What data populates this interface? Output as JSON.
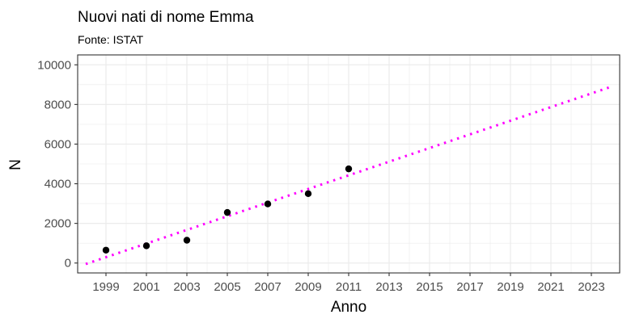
{
  "chart_data": {
    "type": "scatter",
    "title": "Nuovi nati di nome Emma",
    "subtitle": "Fonte: ISTAT",
    "xlabel": "Anno",
    "ylabel": "N",
    "xlim": [
      1997.6,
      2024.4
    ],
    "ylim": [
      -500,
      10500
    ],
    "x_ticks": [
      1999,
      2001,
      2003,
      2005,
      2007,
      2009,
      2011,
      2013,
      2015,
      2017,
      2019,
      2021,
      2023
    ],
    "y_ticks": [
      0,
      2000,
      4000,
      6000,
      8000,
      10000
    ],
    "grid": true,
    "points": {
      "x": [
        1999,
        2001,
        2003,
        2005,
        2007,
        2009,
        2011
      ],
      "y": [
        650,
        870,
        1150,
        2550,
        2980,
        3500,
        4750
      ]
    },
    "trend_line": {
      "x": [
        1998,
        2024
      ],
      "y": [
        -50,
        8900
      ],
      "color": "#ff00ff",
      "style": "dotted"
    },
    "point_color": "#000000",
    "panel_background": "#ffffff",
    "grid_color": "#ebebeb"
  }
}
